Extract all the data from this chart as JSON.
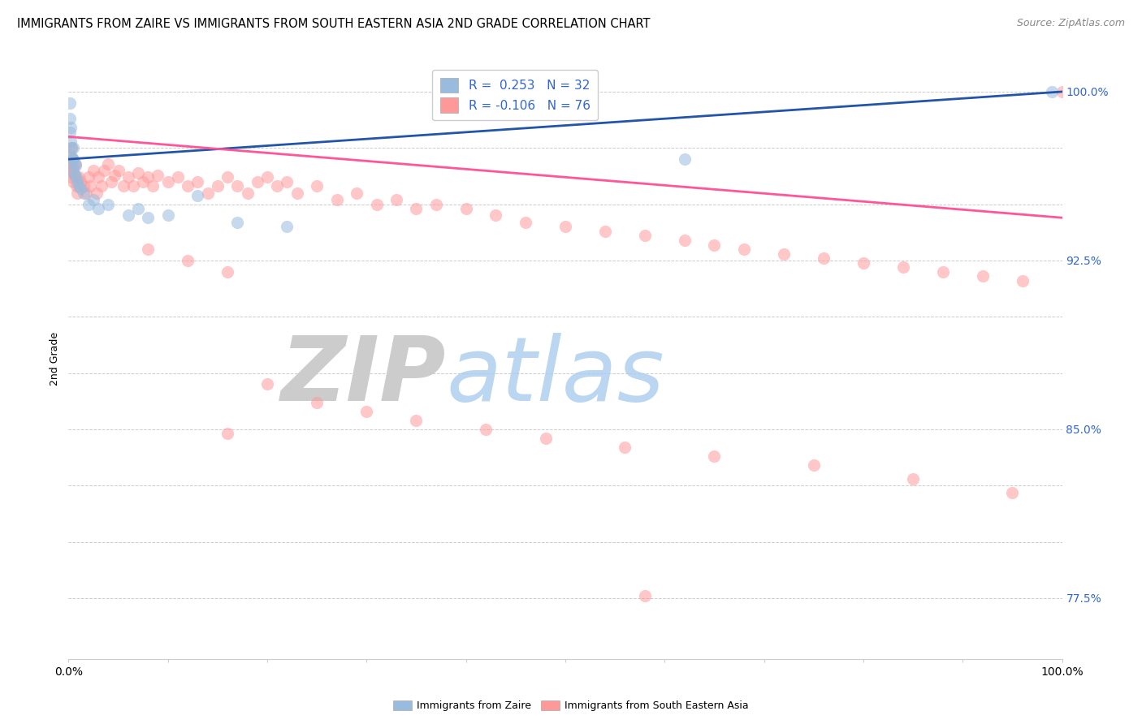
{
  "title": "IMMIGRANTS FROM ZAIRE VS IMMIGRANTS FROM SOUTH EASTERN ASIA 2ND GRADE CORRELATION CHART",
  "source": "Source: ZipAtlas.com",
  "ylabel": "2nd Grade",
  "R_blue": 0.253,
  "N_blue": 32,
  "R_pink": -0.106,
  "N_pink": 76,
  "xlim": [
    0.0,
    1.0
  ],
  "ylim": [
    0.748,
    1.015
  ],
  "y_ticks": [
    0.775,
    0.8,
    0.825,
    0.85,
    0.875,
    0.9,
    0.925,
    0.95,
    0.975,
    1.0
  ],
  "y_tick_labels": [
    "77.5%",
    "",
    "",
    "85.0%",
    "",
    "",
    "92.5%",
    "",
    "",
    "100.0%"
  ],
  "x_ticks": [
    0.0,
    0.1,
    0.2,
    0.3,
    0.4,
    0.5,
    0.6,
    0.7,
    0.8,
    0.9,
    1.0
  ],
  "blue_line_y0": 0.97,
  "blue_line_y1": 1.0,
  "pink_line_y0": 0.98,
  "pink_line_y1": 0.944,
  "blue_x": [
    0.001,
    0.001,
    0.001,
    0.002,
    0.002,
    0.003,
    0.003,
    0.004,
    0.005,
    0.005,
    0.005,
    0.006,
    0.006,
    0.007,
    0.008,
    0.009,
    0.01,
    0.012,
    0.015,
    0.02,
    0.025,
    0.03,
    0.04,
    0.06,
    0.07,
    0.08,
    0.1,
    0.13,
    0.17,
    0.22,
    0.62,
    0.99
  ],
  "blue_y": [
    0.995,
    0.988,
    0.982,
    0.984,
    0.978,
    0.975,
    0.971,
    0.97,
    0.975,
    0.97,
    0.965,
    0.968,
    0.963,
    0.967,
    0.962,
    0.96,
    0.958,
    0.957,
    0.955,
    0.95,
    0.952,
    0.948,
    0.95,
    0.945,
    0.948,
    0.944,
    0.945,
    0.954,
    0.942,
    0.94,
    0.97,
    1.0
  ],
  "pink_x": [
    0.001,
    0.001,
    0.002,
    0.002,
    0.003,
    0.003,
    0.004,
    0.004,
    0.005,
    0.005,
    0.006,
    0.007,
    0.008,
    0.009,
    0.01,
    0.012,
    0.015,
    0.018,
    0.02,
    0.022,
    0.025,
    0.028,
    0.03,
    0.033,
    0.036,
    0.04,
    0.043,
    0.046,
    0.05,
    0.055,
    0.06,
    0.065,
    0.07,
    0.075,
    0.08,
    0.085,
    0.09,
    0.1,
    0.11,
    0.12,
    0.13,
    0.14,
    0.15,
    0.16,
    0.17,
    0.18,
    0.19,
    0.2,
    0.21,
    0.22,
    0.23,
    0.25,
    0.27,
    0.29,
    0.31,
    0.33,
    0.35,
    0.37,
    0.4,
    0.43,
    0.46,
    0.5,
    0.54,
    0.58,
    0.62,
    0.65,
    0.68,
    0.72,
    0.76,
    0.8,
    0.84,
    0.88,
    0.92,
    0.96,
    0.16,
    1.0
  ],
  "pink_y": [
    0.972,
    0.965,
    0.968,
    0.962,
    0.975,
    0.968,
    0.97,
    0.964,
    0.966,
    0.96,
    0.963,
    0.968,
    0.958,
    0.955,
    0.962,
    0.96,
    0.958,
    0.955,
    0.962,
    0.958,
    0.965,
    0.955,
    0.962,
    0.958,
    0.965,
    0.968,
    0.96,
    0.963,
    0.965,
    0.958,
    0.962,
    0.958,
    0.964,
    0.96,
    0.962,
    0.958,
    0.963,
    0.96,
    0.962,
    0.958,
    0.96,
    0.955,
    0.958,
    0.962,
    0.958,
    0.955,
    0.96,
    0.962,
    0.958,
    0.96,
    0.955,
    0.958,
    0.952,
    0.955,
    0.95,
    0.952,
    0.948,
    0.95,
    0.948,
    0.945,
    0.942,
    0.94,
    0.938,
    0.936,
    0.934,
    0.932,
    0.93,
    0.928,
    0.926,
    0.924,
    0.922,
    0.92,
    0.918,
    0.916,
    0.848,
    1.0
  ],
  "pink_extra_x": [
    0.08,
    0.12,
    0.16,
    0.2,
    0.25,
    0.3,
    0.35,
    0.42,
    0.48,
    0.56,
    0.65,
    0.75,
    0.85,
    0.95
  ],
  "pink_extra_y": [
    0.93,
    0.925,
    0.92,
    0.87,
    0.862,
    0.858,
    0.854,
    0.85,
    0.846,
    0.842,
    0.838,
    0.834,
    0.828,
    0.822
  ],
  "pink_lone_x": [
    0.58
  ],
  "pink_lone_y": [
    0.776
  ],
  "blue_color": "#99BBDD",
  "pink_color": "#FF9999",
  "blue_line_color": "#2255AA",
  "pink_line_color": "#FF5599",
  "scatter_size": 120,
  "scatter_alpha": 0.55,
  "grid_color": "#CCCCCC",
  "background_color": "#FFFFFF",
  "title_fontsize": 10.5,
  "source_fontsize": 9,
  "legend_fontsize": 11,
  "tick_fontsize": 10,
  "ylabel_fontsize": 9
}
